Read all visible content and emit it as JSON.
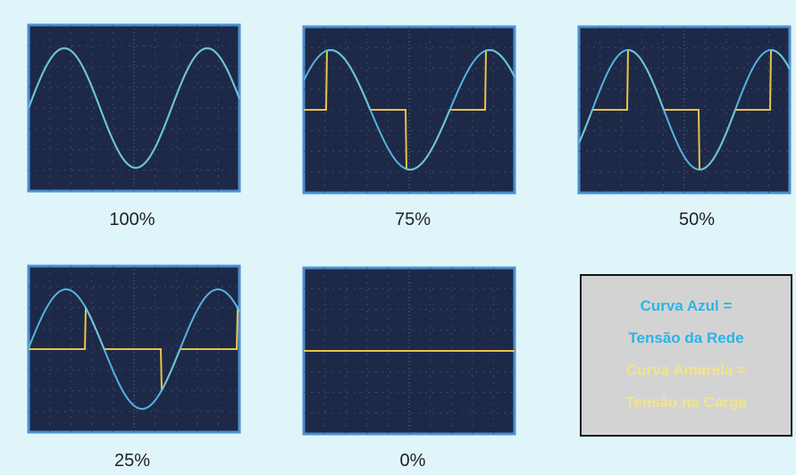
{
  "panels": [
    {
      "label": "100%"
    },
    {
      "label": "75%"
    },
    {
      "label": "50%"
    },
    {
      "label": "25%"
    },
    {
      "label": "0%"
    }
  ],
  "legend": {
    "lines": [
      "Curva Azul =",
      "Tensão da Rede",
      "Curva Amarela =",
      "Tensão na Carga"
    ]
  }
}
